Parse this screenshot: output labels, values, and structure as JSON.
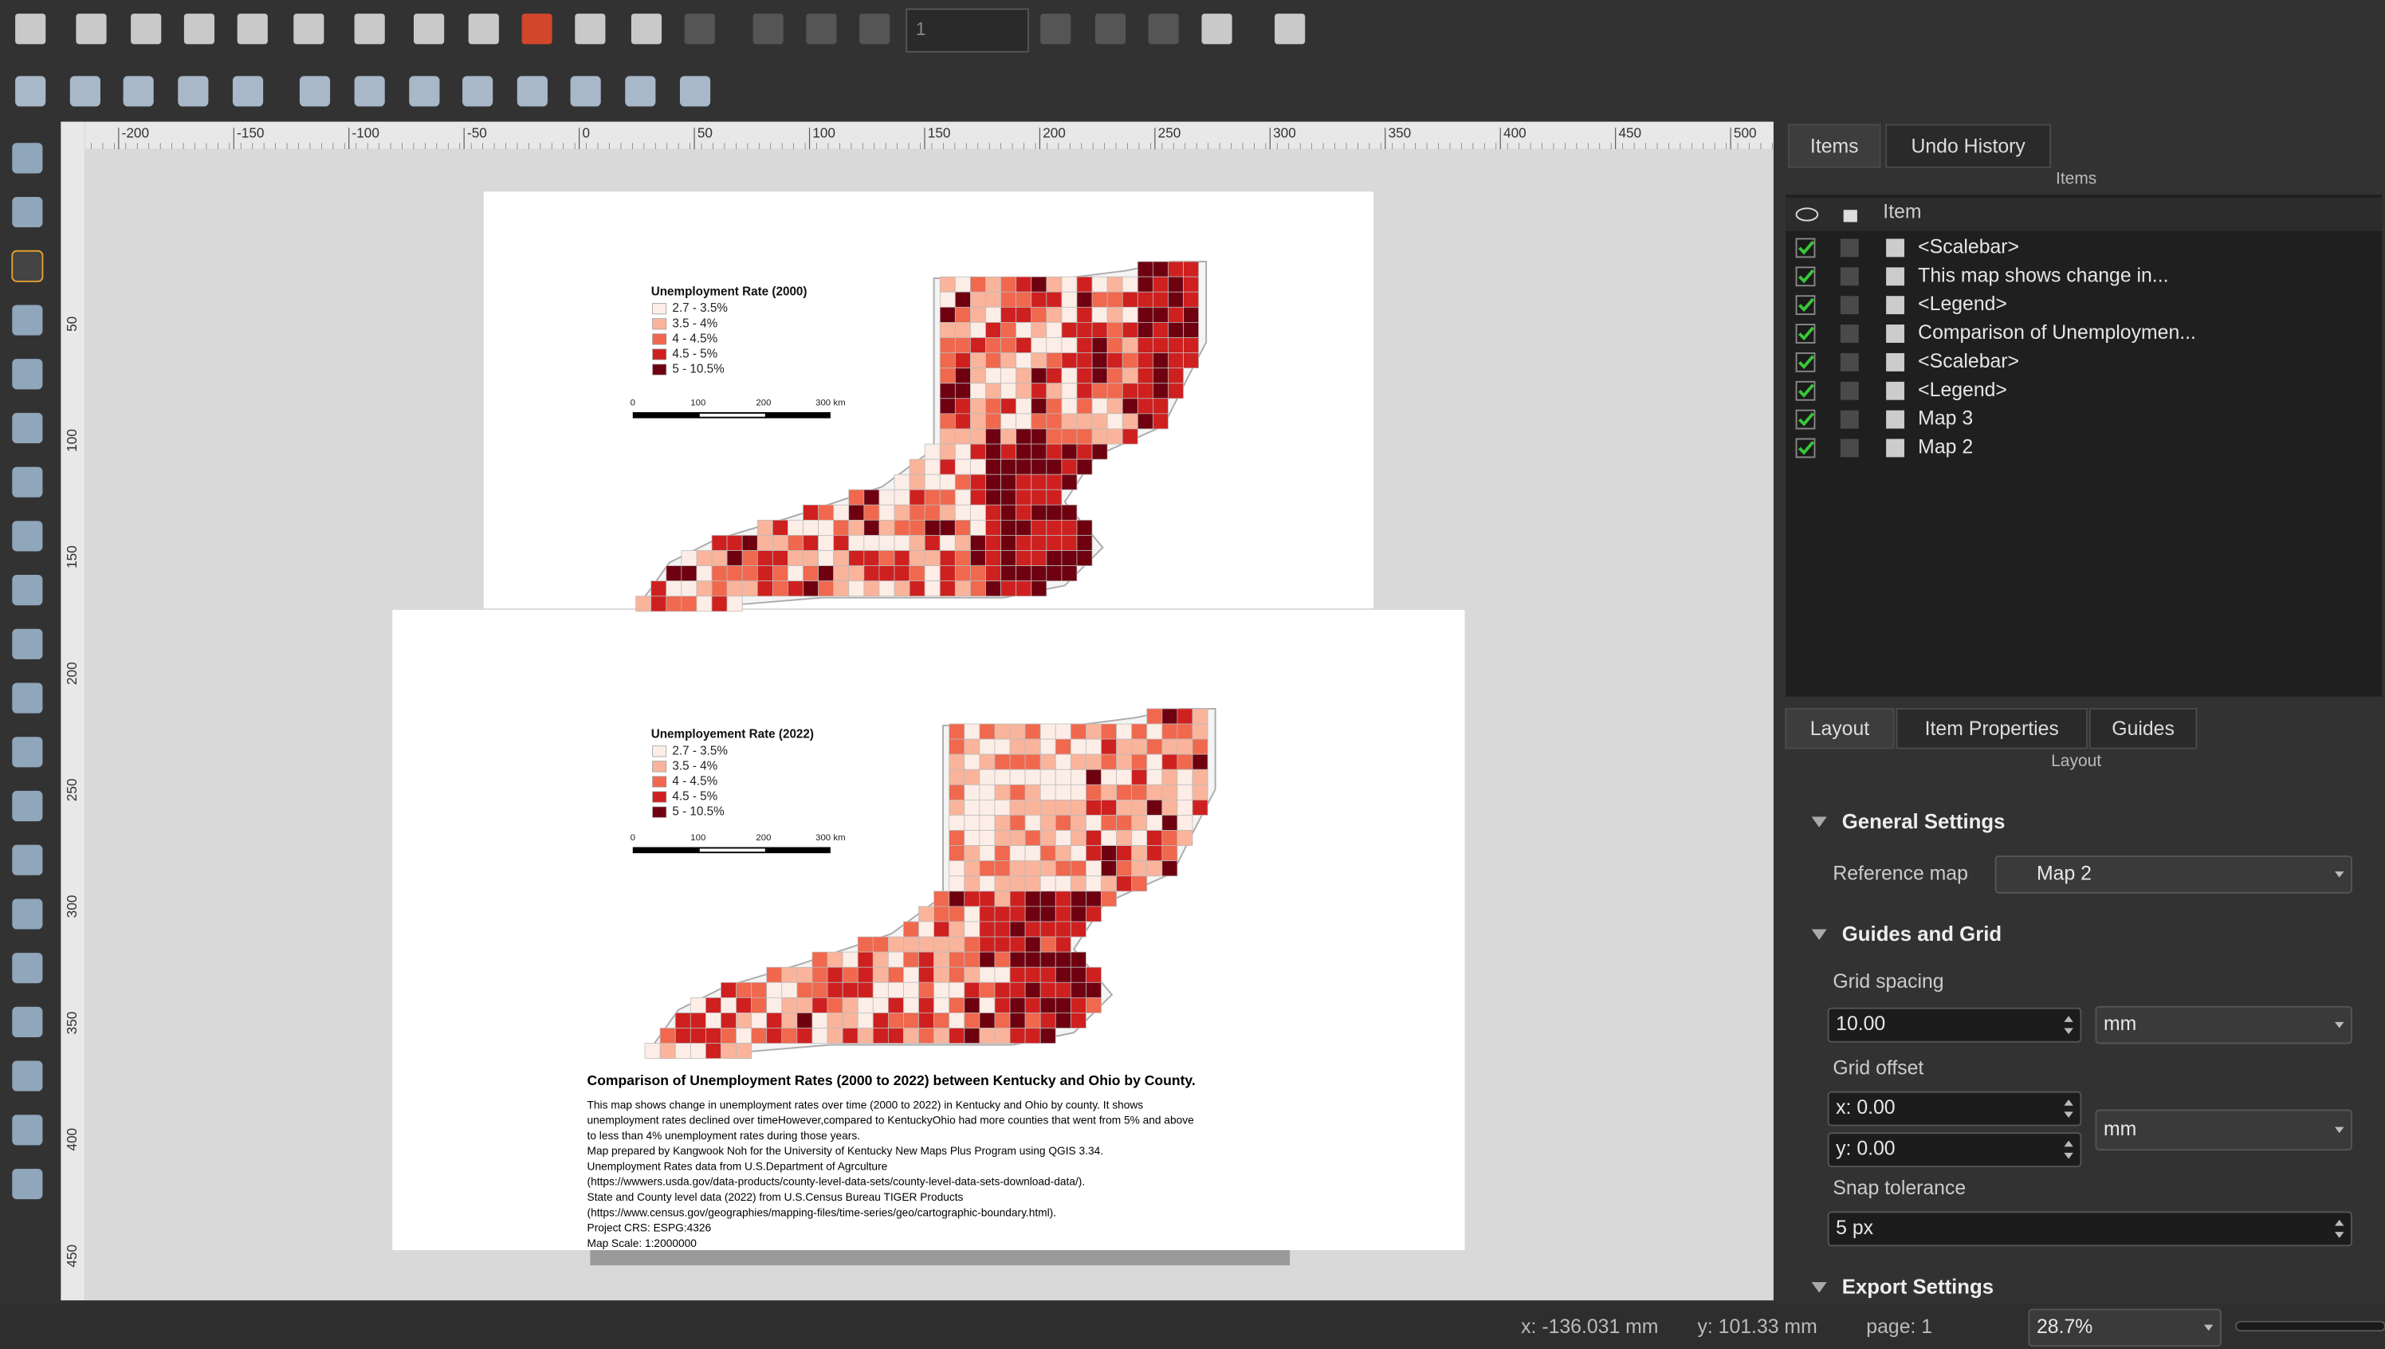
{
  "toolbar": {
    "page_number": "1"
  },
  "ruler": {
    "x_labels": [
      "-200",
      "-150",
      "-100",
      "-50",
      "0",
      "50",
      "100",
      "150",
      "200",
      "250",
      "300",
      "350",
      "400",
      "450",
      "500"
    ],
    "y_labels": [
      "50",
      "100",
      "150",
      "200",
      "250",
      "300",
      "350",
      "400",
      "450"
    ]
  },
  "maps": [
    {
      "legend_title": "Unemployment Rate (2000)",
      "legend_items": [
        "2.7 - 3.5%",
        "3.5 - 4%",
        "4 - 4.5%",
        "4.5 - 5%",
        "5 - 10.5%"
      ],
      "scalebar_labels": [
        "0",
        "100",
        "200",
        "300 km"
      ]
    },
    {
      "legend_title": "Unemployement Rate (2022)",
      "legend_items": [
        "2.7 - 3.5%",
        "3.5 - 4%",
        "4 - 4.5%",
        "4.5 - 5%",
        "5 - 10.5%"
      ],
      "scalebar_labels": [
        "0",
        "100",
        "200",
        "300 km"
      ]
    }
  ],
  "layout_text": {
    "title": "Comparison of Unemployment Rates (2000 to 2022) between Kentucky and Ohio by County.",
    "body": [
      "This map shows change in unemployment rates over time (2000 to 2022) in Kentucky and Ohio by county. It shows",
      "unemployment rates declined over timeHowever,compared to KentuckyOhio had more counties that went from 5% and above",
      "to less than 4% unemployment rates during those years.",
      "Map prepared by Kangwook Noh for the University of Kentucky New Maps Plus Program using QGIS 3.34.",
      "Unemployment Rates data from U.S.Department of Agrculture",
      "(https://wwwers.usda.gov/data-products/county-level-data-sets/county-level-data-sets-download-data/).",
      "State and County level data (2022) from U.S.Census Bureau TIGER Products",
      "(https://www.census.gov/geographies/mapping-files/time-series/geo/cartographic-boundary.html).",
      "Project CRS: ESPG:4326",
      "Map Scale: 1:2000000"
    ]
  },
  "items_panel": {
    "tabs": [
      "Items",
      "Undo History"
    ],
    "heading": "Items",
    "column": "Item",
    "items": [
      "<Scalebar>",
      "This map shows change in...",
      "<Legend>",
      "Comparison of Unemploymen...",
      "<Scalebar>",
      "<Legend>",
      "Map 3",
      "Map 2"
    ]
  },
  "layout_panel": {
    "tabs": [
      "Layout",
      "Item Properties",
      "Guides"
    ],
    "heading": "Layout",
    "general_settings": "General Settings",
    "reference_map_label": "Reference map",
    "reference_map": "Map 2",
    "guides_and_grid": "Guides and Grid",
    "grid_spacing_label": "Grid spacing",
    "grid_spacing": "10.00",
    "grid_spacing_unit": "mm",
    "grid_offset_label": "Grid offset",
    "grid_offset_x": "x: 0.00",
    "grid_offset_y": "y: 0.00",
    "grid_offset_unit": "mm",
    "snap_tolerance_label": "Snap tolerance",
    "snap_tolerance": "5 px",
    "export_settings": "Export Settings"
  },
  "status_bar": {
    "x": "x: -136.031 mm",
    "y": "y: 101.33 mm",
    "page": "page: 1",
    "zoom": "28.7%"
  }
}
